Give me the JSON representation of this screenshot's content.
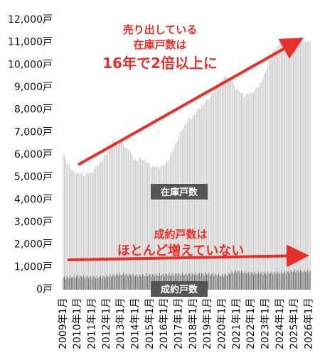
{
  "chart_data": {
    "type": "bar",
    "title": "",
    "xlabel": "",
    "ylabel": "",
    "ylim": [
      0,
      12000
    ],
    "y_ticks": [
      "12,000戸",
      "11,000戸",
      "10,000戸",
      "9,000戸",
      "8,000戸",
      "7,000戸",
      "6,000戸",
      "5,000戸",
      "4,000戸",
      "3,000戸",
      "2,000戸",
      "1,000戸",
      "0戸"
    ],
    "y_tick_values": [
      12000,
      11000,
      10000,
      9000,
      8000,
      7000,
      6000,
      5000,
      4000,
      3000,
      2000,
      1000,
      0
    ],
    "x_tick_labels": [
      "2009年1月",
      "2010年1月",
      "2011年1月",
      "2012年1月",
      "2013年1月",
      "2014年1月",
      "2015年1月",
      "2016年1月",
      "2017年1月",
      "2018年1月",
      "2019年1月",
      "2020年1月",
      "2021年1月",
      "2022年1月",
      "2023年1月",
      "2024年1月",
      "2025年1月",
      "2026年1月"
    ],
    "grid": false,
    "series": [
      {
        "name": "在庫戸数",
        "color": "#c8c8c8",
        "anchors_year_value": [
          [
            2009.0,
            5950
          ],
          [
            2009.25,
            5700
          ],
          [
            2009.6,
            5250
          ],
          [
            2010.0,
            5150
          ],
          [
            2010.5,
            5100
          ],
          [
            2011.0,
            5200
          ],
          [
            2011.5,
            5600
          ],
          [
            2012.0,
            6000
          ],
          [
            2012.5,
            6600
          ],
          [
            2013.0,
            6500
          ],
          [
            2013.5,
            6200
          ],
          [
            2014.0,
            5700
          ],
          [
            2014.5,
            5800
          ],
          [
            2015.0,
            5500
          ],
          [
            2015.5,
            5400
          ],
          [
            2016.0,
            5500
          ],
          [
            2016.5,
            6000
          ],
          [
            2017.0,
            6800
          ],
          [
            2017.5,
            7400
          ],
          [
            2018.0,
            7700
          ],
          [
            2018.5,
            8100
          ],
          [
            2019.0,
            8400
          ],
          [
            2019.5,
            8900
          ],
          [
            2020.0,
            9300
          ],
          [
            2020.3,
            9500
          ],
          [
            2020.7,
            9200
          ],
          [
            2021.0,
            8900
          ],
          [
            2021.5,
            8600
          ],
          [
            2022.0,
            8700
          ],
          [
            2022.5,
            9000
          ],
          [
            2023.0,
            9600
          ],
          [
            2023.3,
            10300
          ],
          [
            2023.6,
            10600
          ],
          [
            2024.0,
            10900
          ],
          [
            2024.5,
            11000
          ],
          [
            2025.0,
            11100
          ],
          [
            2025.5,
            11000
          ],
          [
            2026.0,
            11000
          ]
        ]
      },
      {
        "name": "成約戸数",
        "color": "#6a6a6a",
        "anchors_year_value": [
          [
            2009.0,
            500
          ],
          [
            2010.0,
            560
          ],
          [
            2011.0,
            520
          ],
          [
            2012.0,
            560
          ],
          [
            2013.0,
            660
          ],
          [
            2014.0,
            600
          ],
          [
            2015.0,
            620
          ],
          [
            2016.0,
            640
          ],
          [
            2017.0,
            650
          ],
          [
            2018.0,
            660
          ],
          [
            2019.0,
            670
          ],
          [
            2020.0,
            600
          ],
          [
            2021.0,
            780
          ],
          [
            2022.0,
            700
          ],
          [
            2023.0,
            700
          ],
          [
            2024.0,
            720
          ],
          [
            2025.0,
            800
          ],
          [
            2026.0,
            790
          ]
        ]
      }
    ],
    "annotations": {
      "top_lines": [
        "売り出している",
        "在庫戸数は"
      ],
      "top_emphasis": "16年で2倍以上に",
      "bottom_lines": [
        "成約戸数は"
      ],
      "bottom_emphasis": "ほとんど増えていない"
    },
    "labels": {
      "inventory_badge": "在庫戸数",
      "contract_badge": "成約戸数"
    },
    "colors": {
      "accent": "#e8302a",
      "badge": "#555555",
      "inventory_bar": "#c8c8c8",
      "contract_bar": "#6a6a6a"
    }
  }
}
